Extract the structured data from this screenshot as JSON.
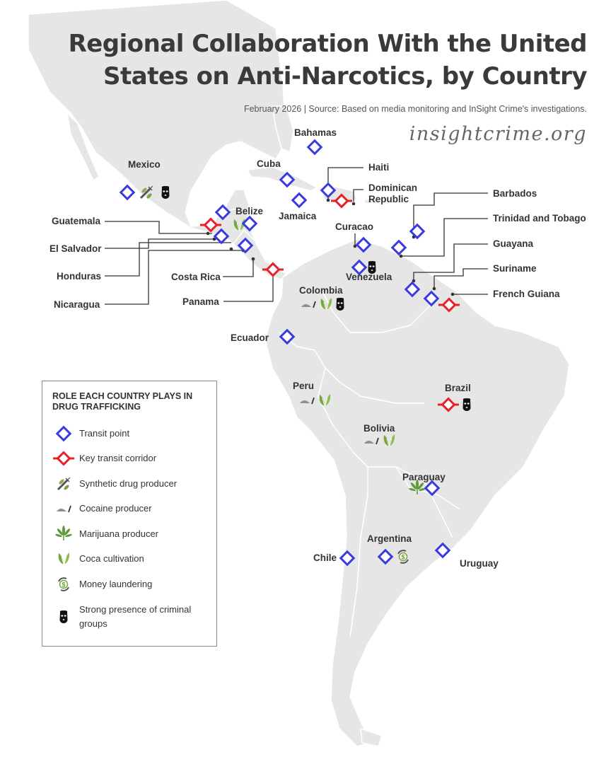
{
  "header": {
    "title_line1": "Regional Collaboration With the United",
    "title_line2": "States on Anti-Narcotics, by Country",
    "subtitle": "February 2026 | Source: Based on media monitoring and InSight Crime's investigations.",
    "brand": "insightcrime.org"
  },
  "colors": {
    "land": "#e6e6e6",
    "border": "#ffffff",
    "transit": "#3a3adf",
    "corridor": "#e8202a",
    "plant": "#7aa541",
    "text": "#333333"
  },
  "countries": [
    {
      "key": "mexico",
      "name": "Mexico",
      "roles": [
        "Transit point",
        "Synthetic drug producer",
        "Strong presence of criminal groups"
      ]
    },
    {
      "key": "guatemala",
      "name": "Guatemala",
      "roles": [
        "Transit point",
        "Key transit corridor"
      ]
    },
    {
      "key": "belize",
      "name": "Belize",
      "roles": [
        "Transit point",
        "Coca cultivation"
      ]
    },
    {
      "key": "el-salvador",
      "name": "El Salvador",
      "roles": [
        "Transit point"
      ]
    },
    {
      "key": "honduras",
      "name": "Honduras",
      "roles": [
        "Transit point"
      ]
    },
    {
      "key": "nicaragua",
      "name": "Nicaragua",
      "roles": [
        "Transit point"
      ]
    },
    {
      "key": "costa-rica",
      "name": "Costa Rica",
      "roles": [
        "Transit point"
      ]
    },
    {
      "key": "panama",
      "name": "Panama",
      "roles": [
        "Key transit corridor"
      ]
    },
    {
      "key": "bahamas",
      "name": "Bahamas",
      "roles": [
        "Transit point"
      ]
    },
    {
      "key": "cuba",
      "name": "Cuba",
      "roles": [
        "Transit point"
      ]
    },
    {
      "key": "jamaica",
      "name": "Jamaica",
      "roles": [
        "Transit point"
      ]
    },
    {
      "key": "haiti",
      "name": "Haiti",
      "roles": [
        "Transit point"
      ]
    },
    {
      "key": "dominican-republic",
      "name": "Dominican Republic",
      "roles": [
        "Key transit corridor"
      ]
    },
    {
      "key": "curacao",
      "name": "Curacao",
      "roles": [
        "Transit point"
      ]
    },
    {
      "key": "barbados",
      "name": "Barbados",
      "roles": [
        "Transit point"
      ]
    },
    {
      "key": "trinidad",
      "name": "Trinidad and Tobago",
      "roles": [
        "Transit point"
      ]
    },
    {
      "key": "venezuela",
      "name": "Venezuela",
      "roles": [
        "Transit point",
        "Strong presence of criminal groups"
      ]
    },
    {
      "key": "guayana",
      "name": "Guayana",
      "roles": [
        "Transit point"
      ]
    },
    {
      "key": "suriname",
      "name": "Suriname",
      "roles": [
        "Transit point"
      ]
    },
    {
      "key": "french-guiana",
      "name": "French Guiana",
      "roles": [
        "Key transit corridor"
      ]
    },
    {
      "key": "colombia",
      "name": "Colombia",
      "roles": [
        "Cocaine producer",
        "Coca cultivation",
        "Strong presence of criminal groups"
      ]
    },
    {
      "key": "ecuador",
      "name": "Ecuador",
      "roles": [
        "Transit point"
      ]
    },
    {
      "key": "peru",
      "name": "Peru",
      "roles": [
        "Cocaine producer",
        "Coca cultivation"
      ]
    },
    {
      "key": "brazil",
      "name": "Brazil",
      "roles": [
        "Key transit corridor",
        "Strong presence of criminal groups"
      ]
    },
    {
      "key": "bolivia",
      "name": "Bolivia",
      "roles": [
        "Cocaine producer",
        "Coca cultivation"
      ]
    },
    {
      "key": "paraguay",
      "name": "Paraguay",
      "roles": [
        "Marijuana producer",
        "Transit point"
      ]
    },
    {
      "key": "chile",
      "name": "Chile",
      "roles": [
        "Transit point"
      ]
    },
    {
      "key": "argentina",
      "name": "Argentina",
      "roles": [
        "Transit point",
        "Money laundering"
      ]
    },
    {
      "key": "uruguay",
      "name": "Uruguay",
      "roles": [
        "Transit point"
      ]
    }
  ],
  "legend": {
    "title": "ROLE EACH COUNTRY PLAYS IN DRUG TRAFFICKING",
    "items": [
      {
        "icon": "transit-diamond-icon",
        "label": "Transit point"
      },
      {
        "icon": "corridor-diamond-icon",
        "label": "Key transit corridor"
      },
      {
        "icon": "syringe-pill-icon",
        "label": "Synthetic drug producer"
      },
      {
        "icon": "cocaine-line-icon",
        "label": "Cocaine producer"
      },
      {
        "icon": "marijuana-leaf-icon",
        "label": "Marijuana producer"
      },
      {
        "icon": "coca-leaf-icon",
        "label": "Coca cultivation"
      },
      {
        "icon": "money-cycle-icon",
        "label": "Money laundering"
      },
      {
        "icon": "balaclava-icon",
        "label": "Strong presence of criminal groups"
      }
    ]
  }
}
